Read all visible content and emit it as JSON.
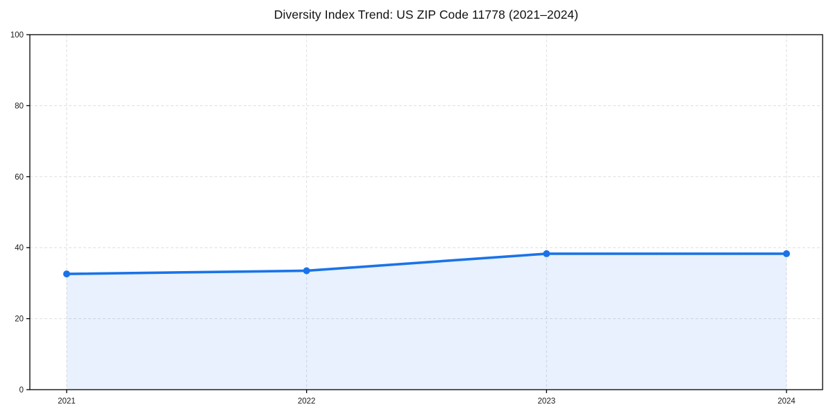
{
  "chart_data": {
    "type": "area",
    "title": "Diversity Index Trend: US ZIP Code 11778 (2021–2024)",
    "categories": [
      "2021",
      "2022",
      "2023",
      "2024"
    ],
    "series": [
      {
        "name": "Diversity Index",
        "values": [
          32.6,
          33.5,
          38.3,
          38.3
        ]
      }
    ],
    "xlabel": "",
    "ylabel": "",
    "ylim": [
      0,
      100
    ],
    "y_ticks": [
      0,
      20,
      40,
      60,
      80,
      100
    ],
    "grid": "dashed-both-axes",
    "legend": "none",
    "marker": "circle",
    "colors": {
      "line": "#1a73e8",
      "marker": "#1a73e8",
      "area_fill": "#1a73e8",
      "area_fill_opacity": 0.1,
      "gridline": "#dedede",
      "axis": "#000000",
      "tick_text": "#1a1a1a",
      "title_text": "#111111",
      "background": "#ffffff"
    }
  }
}
